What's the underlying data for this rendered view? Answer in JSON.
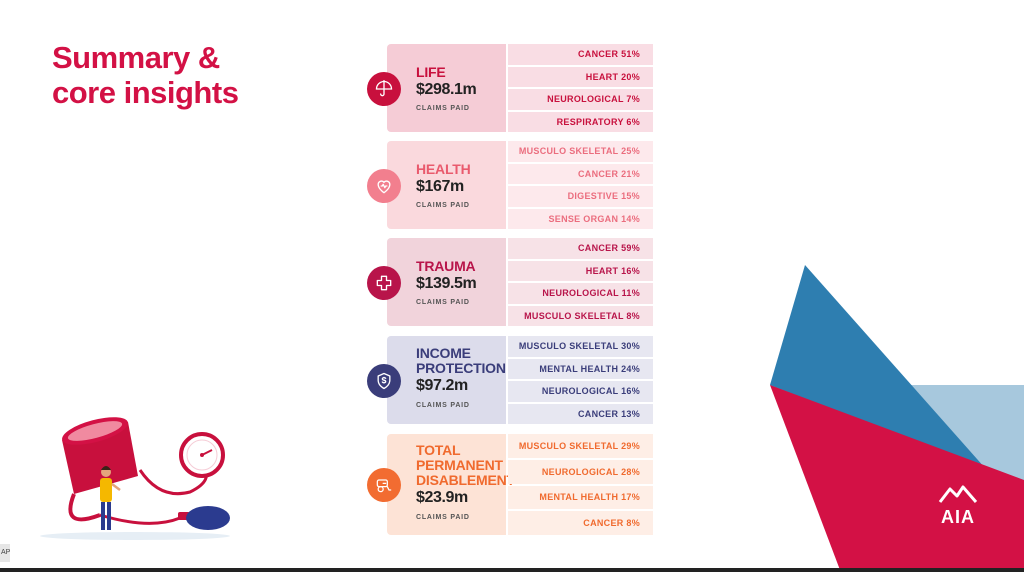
{
  "title": {
    "line1": "Summary &",
    "line2": "core insights"
  },
  "footer_label": "CLAIMS PAID",
  "categories": [
    {
      "id": "life",
      "name_lines": [
        "LIFE"
      ],
      "amount": "$298.1m",
      "icon": "umbrella-icon",
      "color": "#c8103d",
      "rows": [
        "CANCER 51%",
        "HEART 20%",
        "NEUROLOGICAL 7%",
        "RESPIRATORY 6%"
      ]
    },
    {
      "id": "health",
      "name_lines": [
        "HEALTH"
      ],
      "amount": "$167m",
      "icon": "heart-icon",
      "color": "#e95a6d",
      "rows": [
        "MUSCULO SKELETAL 25%",
        "CANCER 21%",
        "DIGESTIVE 15%",
        "SENSE ORGAN 14%"
      ]
    },
    {
      "id": "trauma",
      "name_lines": [
        "TRAUMA"
      ],
      "amount": "$139.5m",
      "icon": "medical-cross-icon",
      "color": "#b8144a",
      "rows": [
        "CANCER 59%",
        "HEART 16%",
        "NEUROLOGICAL 11%",
        "MUSCULO SKELETAL 8%"
      ]
    },
    {
      "id": "income-protection",
      "name_lines": [
        "INCOME",
        "PROTECTION"
      ],
      "amount": "$97.2m",
      "icon": "shield-dollar-icon",
      "color": "#3a3d7a",
      "rows": [
        "MUSCULO SKELETAL 30%",
        "MENTAL HEALTH 24%",
        "NEUROLOGICAL 16%",
        "CANCER 13%"
      ]
    },
    {
      "id": "tpd",
      "name_lines": [
        "TOTAL",
        "PERMANENT",
        "DISABLEMENT"
      ],
      "amount": "$23.9m",
      "icon": "wheelchair-icon",
      "color": "#f06a2e",
      "rows": [
        "MUSCULO SKELETAL 29%",
        "NEUROLOGICAL 28%",
        "MENTAL HEALTH 17%",
        "CANCER 8%"
      ]
    }
  ],
  "logo_text": "AIA",
  "corner_tag": "AP",
  "colors": {
    "brand_red": "#d31145",
    "decor_blue": "#2e7eb0",
    "decor_light_blue": "#a7c8dd"
  }
}
